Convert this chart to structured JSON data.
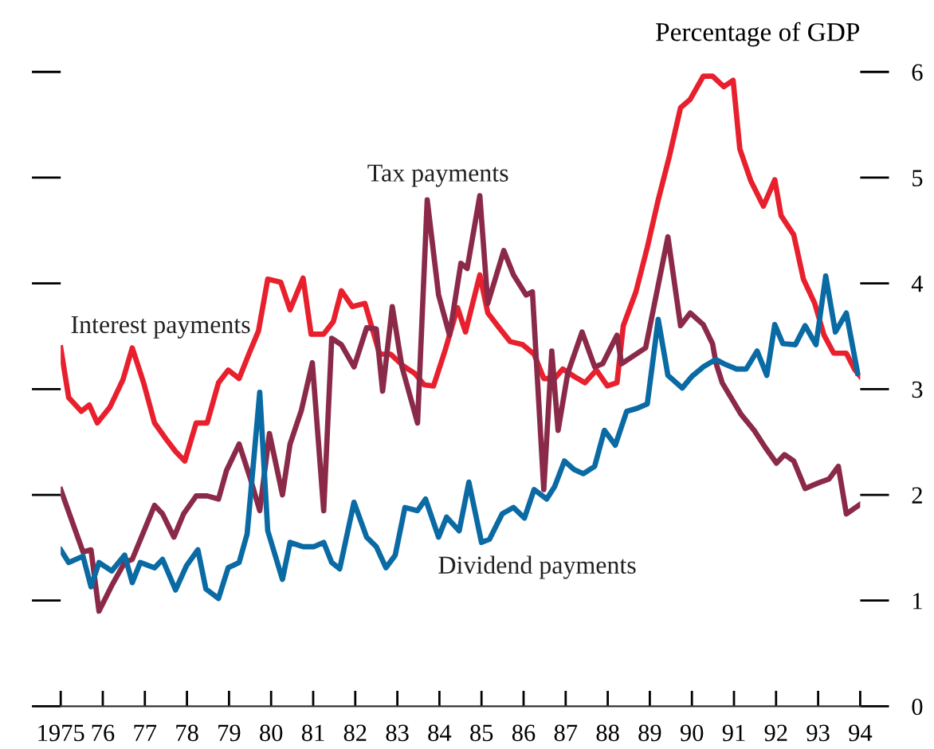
{
  "chart_data": {
    "type": "line",
    "ylabel": "Percentage of GDP",
    "xlim": [
      1975,
      1994
    ],
    "ylim": [
      0,
      6
    ],
    "xticks": [
      {
        "value": 1975,
        "label": "1975"
      },
      {
        "value": 1976,
        "label": "76"
      },
      {
        "value": 1977,
        "label": "77"
      },
      {
        "value": 1978,
        "label": "78"
      },
      {
        "value": 1979,
        "label": "79"
      },
      {
        "value": 1980,
        "label": "80"
      },
      {
        "value": 1981,
        "label": "81"
      },
      {
        "value": 1982,
        "label": "82"
      },
      {
        "value": 1983,
        "label": "83"
      },
      {
        "value": 1984,
        "label": "84"
      },
      {
        "value": 1985,
        "label": "85"
      },
      {
        "value": 1986,
        "label": "86"
      },
      {
        "value": 1987,
        "label": "87"
      },
      {
        "value": 1988,
        "label": "88"
      },
      {
        "value": 1989,
        "label": "89"
      },
      {
        "value": 1990,
        "label": "90"
      },
      {
        "value": 1991,
        "label": "91"
      },
      {
        "value": 1992,
        "label": "92"
      },
      {
        "value": 1993,
        "label": "93"
      },
      {
        "value": 1994,
        "label": "94"
      }
    ],
    "yticks": [
      0,
      1,
      2,
      3,
      4,
      5,
      6
    ],
    "grid": false,
    "legend": false,
    "marker": "none",
    "line_style": "solid",
    "series": [
      {
        "name": "Interest payments",
        "color": "#e8202e",
        "x": [
          1975.0,
          1975.19,
          1975.49,
          1975.68,
          1975.87,
          1976.17,
          1976.48,
          1976.7,
          1976.97,
          1977.23,
          1977.5,
          1977.73,
          1977.95,
          1978.22,
          1978.48,
          1978.75,
          1978.98,
          1979.24,
          1979.47,
          1979.7,
          1979.92,
          1980.23,
          1980.45,
          1980.76,
          1980.95,
          1981.25,
          1981.48,
          1981.67,
          1981.93,
          1982.23,
          1982.58,
          1982.84,
          1983.14,
          1983.41,
          1983.64,
          1983.86,
          1984.13,
          1984.43,
          1984.62,
          1984.96,
          1985.15,
          1985.42,
          1985.68,
          1985.98,
          1986.25,
          1986.48,
          1986.74,
          1986.93,
          1987.2,
          1987.46,
          1987.73,
          1987.99,
          1988.22,
          1988.37,
          1988.67,
          1988.94,
          1989.2,
          1989.47,
          1989.73,
          1989.96,
          1990.27,
          1990.49,
          1990.76,
          1990.98,
          1991.14,
          1991.4,
          1991.7,
          1991.97,
          1992.12,
          1992.42,
          1992.65,
          1992.92,
          1993.14,
          1993.37,
          1993.67,
          1993.86,
          1994.0
        ],
        "values": [
          3.39,
          2.92,
          2.79,
          2.85,
          2.68,
          2.83,
          3.09,
          3.39,
          3.06,
          2.68,
          2.53,
          2.41,
          2.32,
          2.68,
          2.68,
          3.06,
          3.18,
          3.1,
          3.33,
          3.55,
          4.04,
          4.01,
          3.75,
          4.05,
          3.52,
          3.52,
          3.64,
          3.93,
          3.78,
          3.81,
          3.33,
          3.33,
          3.22,
          3.15,
          3.04,
          3.03,
          3.36,
          3.77,
          3.54,
          4.08,
          3.72,
          3.58,
          3.45,
          3.42,
          3.33,
          3.1,
          3.1,
          3.19,
          3.12,
          3.06,
          3.18,
          3.03,
          3.06,
          3.6,
          3.92,
          4.34,
          4.79,
          5.21,
          5.66,
          5.74,
          5.96,
          5.96,
          5.86,
          5.92,
          5.27,
          4.97,
          4.73,
          4.98,
          4.64,
          4.46,
          4.04,
          3.81,
          3.51,
          3.34,
          3.34,
          3.19,
          3.12
        ]
      },
      {
        "name": "Tax payments",
        "color": "#8b2a48",
        "x": [
          1975.0,
          1975.53,
          1975.72,
          1975.91,
          1976.21,
          1976.52,
          1976.7,
          1977.23,
          1977.42,
          1977.69,
          1977.92,
          1978.22,
          1978.48,
          1978.75,
          1978.94,
          1979.24,
          1979.51,
          1979.73,
          1979.96,
          1980.27,
          1980.45,
          1980.72,
          1980.98,
          1981.25,
          1981.44,
          1981.67,
          1981.97,
          1982.27,
          1982.5,
          1982.65,
          1982.88,
          1983.11,
          1983.48,
          1983.71,
          1983.98,
          1984.24,
          1984.51,
          1984.66,
          1984.96,
          1985.15,
          1985.53,
          1985.76,
          1986.06,
          1986.21,
          1986.48,
          1986.67,
          1986.82,
          1987.05,
          1987.39,
          1987.69,
          1987.88,
          1988.22,
          1988.33,
          1988.9,
          1989.43,
          1989.73,
          1989.96,
          1990.27,
          1990.49,
          1990.57,
          1990.72,
          1991.17,
          1991.48,
          1991.74,
          1992.01,
          1992.2,
          1992.42,
          1992.69,
          1992.99,
          1993.26,
          1993.48,
          1993.67,
          1994.0
        ],
        "values": [
          2.05,
          1.46,
          1.48,
          0.9,
          1.14,
          1.36,
          1.39,
          1.9,
          1.82,
          1.6,
          1.82,
          1.99,
          1.99,
          1.96,
          2.23,
          2.48,
          2.15,
          1.85,
          2.58,
          2.0,
          2.48,
          2.8,
          3.25,
          1.85,
          3.48,
          3.42,
          3.21,
          3.58,
          3.57,
          2.98,
          3.78,
          3.21,
          2.68,
          4.79,
          3.89,
          3.51,
          4.19,
          4.14,
          4.83,
          3.81,
          4.31,
          4.08,
          3.89,
          3.92,
          2.05,
          3.36,
          2.61,
          3.15,
          3.54,
          3.21,
          3.24,
          3.51,
          3.24,
          3.39,
          4.44,
          3.6,
          3.72,
          3.61,
          3.43,
          3.25,
          3.06,
          2.76,
          2.61,
          2.45,
          2.3,
          2.38,
          2.32,
          2.06,
          2.11,
          2.15,
          2.27,
          1.82,
          1.91
        ]
      },
      {
        "name": "Dividend payments",
        "color": "#0a6aa3",
        "x": [
          1975.0,
          1975.19,
          1975.53,
          1975.72,
          1975.91,
          1976.21,
          1976.52,
          1976.7,
          1976.89,
          1977.23,
          1977.42,
          1977.73,
          1977.99,
          1978.26,
          1978.45,
          1978.75,
          1978.98,
          1979.24,
          1979.43,
          1979.73,
          1979.92,
          1980.27,
          1980.45,
          1980.76,
          1981.02,
          1981.25,
          1981.44,
          1981.63,
          1981.97,
          1982.27,
          1982.5,
          1982.73,
          1982.95,
          1983.18,
          1983.48,
          1983.67,
          1983.98,
          1984.17,
          1984.47,
          1984.7,
          1985.0,
          1985.19,
          1985.49,
          1985.76,
          1986.02,
          1986.25,
          1986.55,
          1986.74,
          1986.97,
          1987.2,
          1987.42,
          1987.69,
          1987.92,
          1988.18,
          1988.45,
          1988.71,
          1988.94,
          1989.2,
          1989.43,
          1989.77,
          1990.0,
          1990.27,
          1990.57,
          1990.76,
          1991.06,
          1991.29,
          1991.55,
          1991.78,
          1991.97,
          1992.16,
          1992.46,
          1992.69,
          1992.95,
          1993.18,
          1993.41,
          1993.67,
          1993.94
        ],
        "values": [
          1.48,
          1.36,
          1.42,
          1.13,
          1.36,
          1.28,
          1.43,
          1.17,
          1.36,
          1.31,
          1.39,
          1.1,
          1.33,
          1.48,
          1.11,
          1.02,
          1.31,
          1.36,
          1.63,
          2.97,
          1.66,
          1.2,
          1.55,
          1.51,
          1.51,
          1.55,
          1.36,
          1.3,
          1.93,
          1.6,
          1.51,
          1.31,
          1.43,
          1.88,
          1.85,
          1.96,
          1.6,
          1.79,
          1.66,
          2.12,
          1.55,
          1.58,
          1.82,
          1.88,
          1.78,
          2.05,
          1.96,
          2.08,
          2.32,
          2.24,
          2.2,
          2.27,
          2.61,
          2.47,
          2.79,
          2.82,
          2.86,
          3.66,
          3.13,
          3.01,
          3.12,
          3.21,
          3.28,
          3.24,
          3.19,
          3.19,
          3.36,
          3.13,
          3.61,
          3.43,
          3.42,
          3.6,
          3.42,
          4.07,
          3.54,
          3.72,
          3.15
        ]
      }
    ]
  }
}
